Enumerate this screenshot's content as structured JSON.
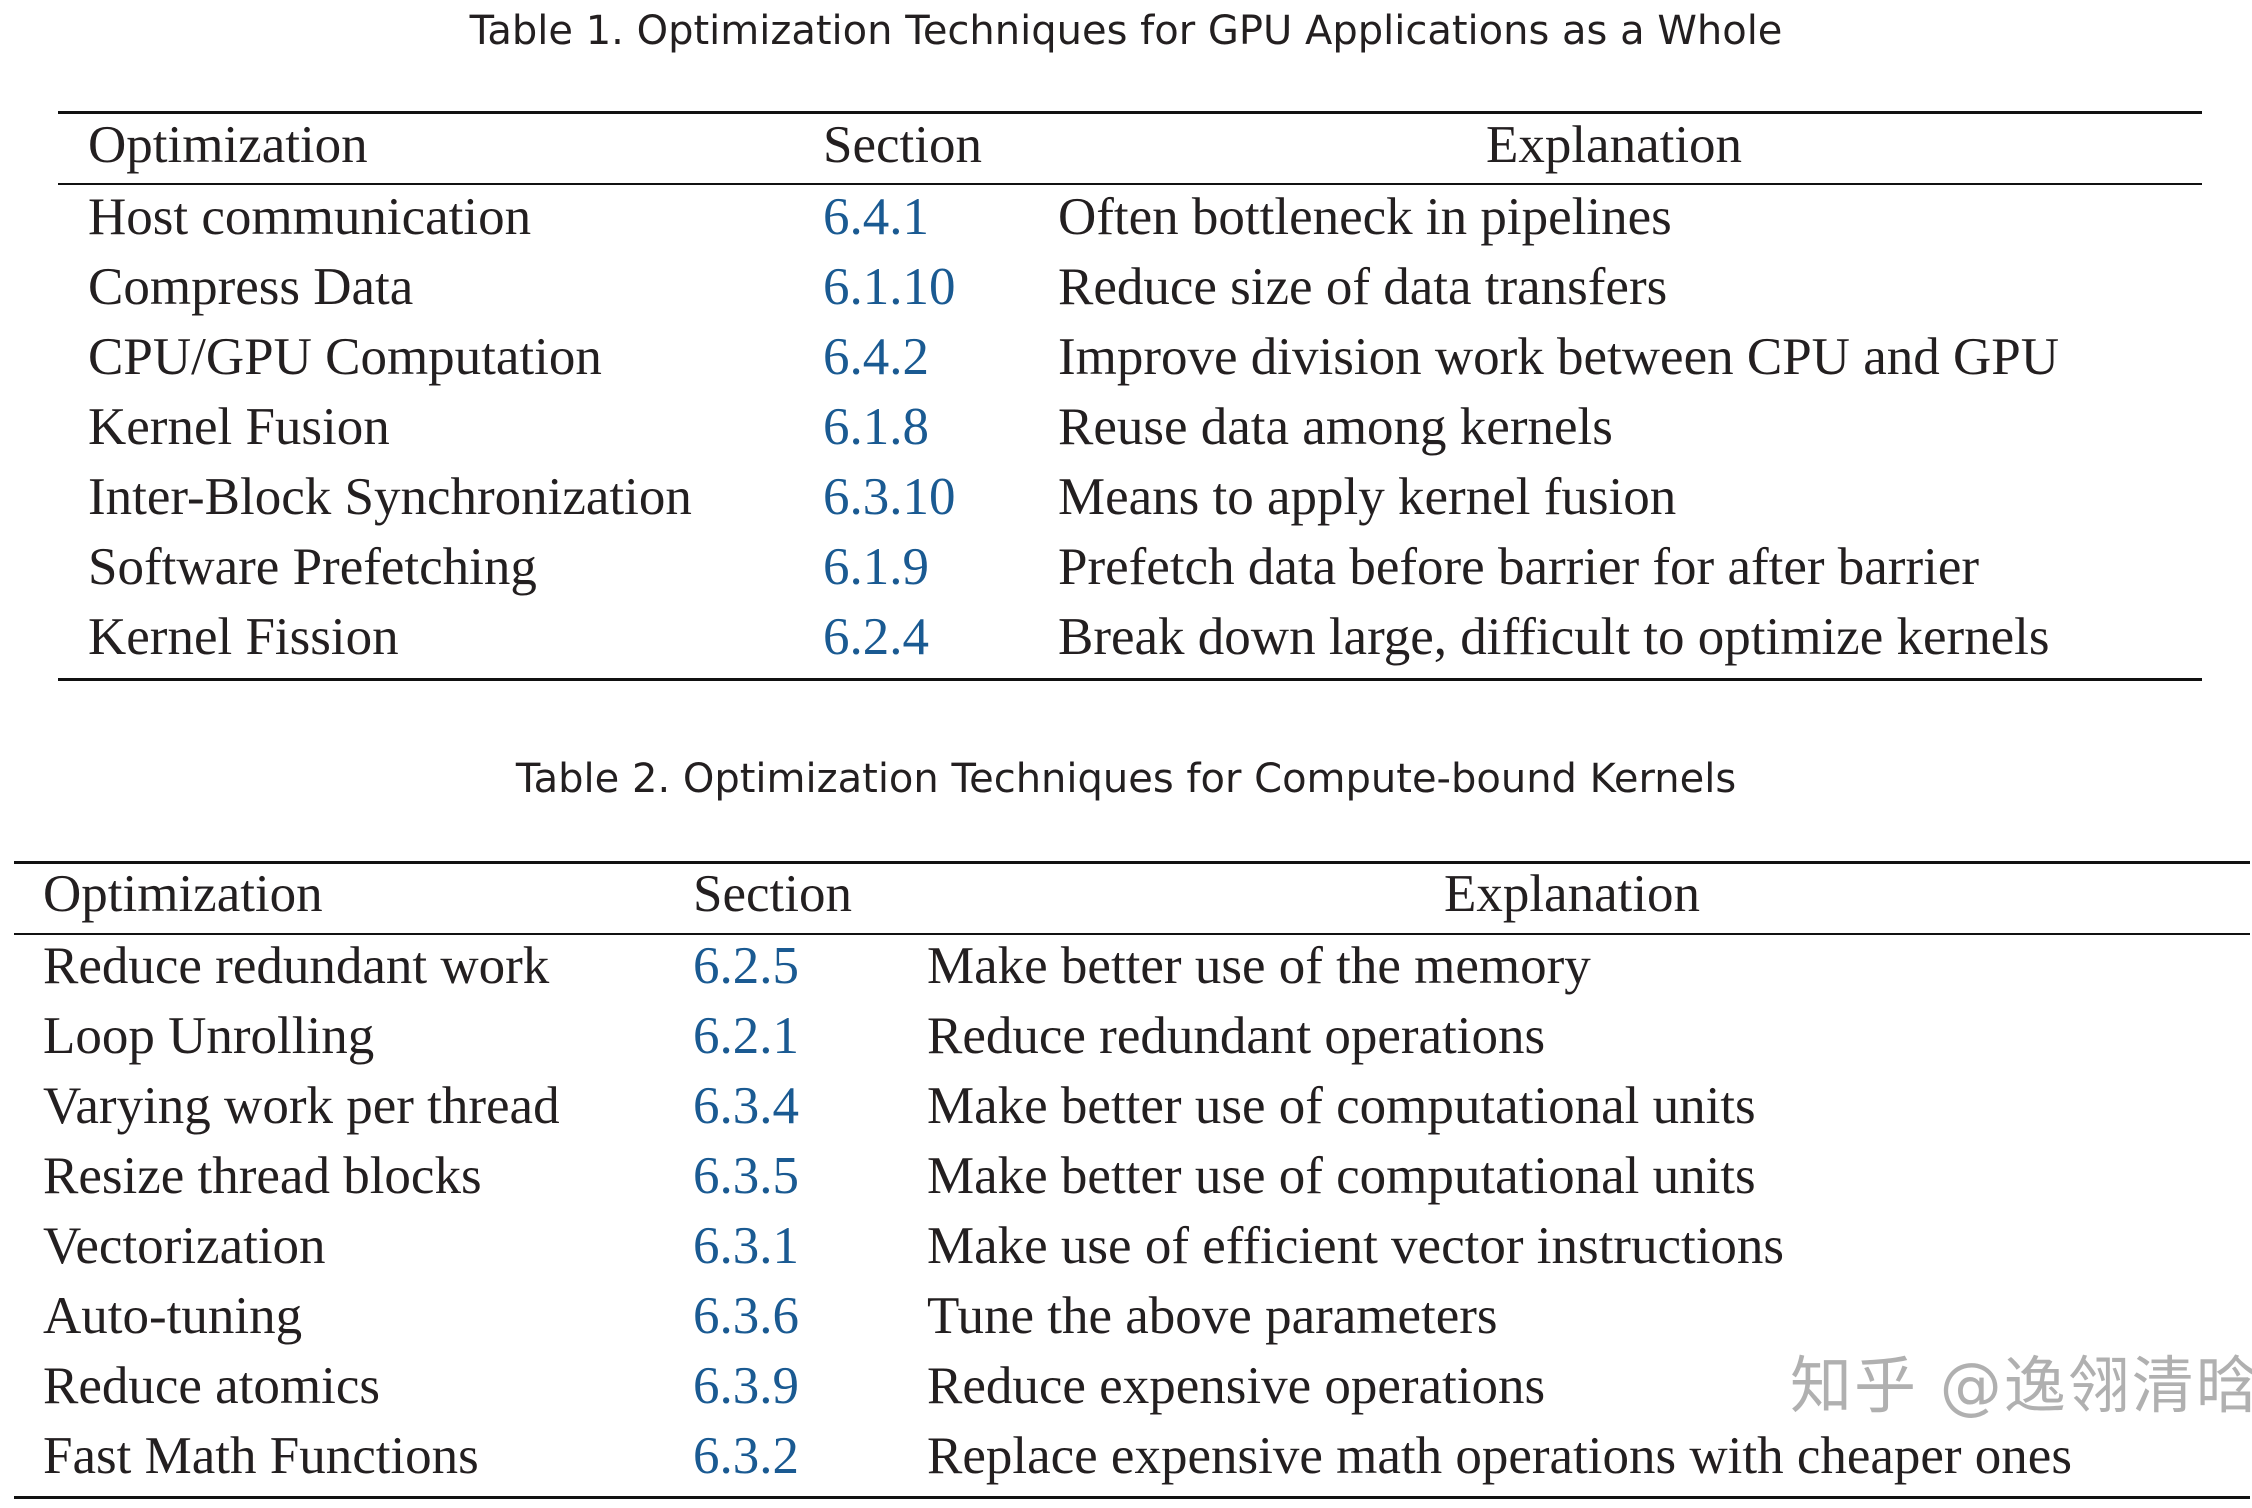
{
  "tables": [
    {
      "caption": "Table 1.  Optimization Techniques for GPU Applications as a Whole",
      "headers": {
        "optimization": "Optimization",
        "section": "Section",
        "explanation": "Explanation"
      },
      "rows": [
        {
          "optimization": "Host communication",
          "section": "6.4.1",
          "explanation": "Often bottleneck in pipelines"
        },
        {
          "optimization": "Compress Data",
          "section": "6.1.10",
          "explanation": "Reduce size of data transfers"
        },
        {
          "optimization": "CPU/GPU Computation",
          "section": "6.4.2",
          "explanation": "Improve division work between CPU and GPU"
        },
        {
          "optimization": "Kernel Fusion",
          "section": "6.1.8",
          "explanation": "Reuse data among kernels"
        },
        {
          "optimization": "Inter-Block Synchronization",
          "section": "6.3.10",
          "explanation": "Means to apply kernel fusion"
        },
        {
          "optimization": "Software Prefetching",
          "section": "6.1.9",
          "explanation": "Prefetch data before barrier for after barrier"
        },
        {
          "optimization": "Kernel Fission",
          "section": "6.2.4",
          "explanation": "Break down large, difficult to optimize kernels"
        }
      ]
    },
    {
      "caption": "Table 2.  Optimization Techniques for Compute-bound Kernels",
      "headers": {
        "optimization": "Optimization",
        "section": "Section",
        "explanation": "Explanation"
      },
      "rows": [
        {
          "optimization": "Reduce redundant work",
          "section": "6.2.5",
          "explanation": "Make better use of the memory"
        },
        {
          "optimization": "Loop Unrolling",
          "section": "6.2.1",
          "explanation": "Reduce redundant operations"
        },
        {
          "optimization": "Varying work per thread",
          "section": "6.3.4",
          "explanation": "Make better use of computational units"
        },
        {
          "optimization": "Resize thread blocks",
          "section": "6.3.5",
          "explanation": "Make better use of computational units"
        },
        {
          "optimization": "Vectorization",
          "section": "6.3.1",
          "explanation": "Make use of efficient vector instructions"
        },
        {
          "optimization": "Auto-tuning",
          "section": "6.3.6",
          "explanation": "Tune the above parameters"
        },
        {
          "optimization": "Reduce atomics",
          "section": "6.3.9",
          "explanation": "Reduce expensive operations"
        },
        {
          "optimization": "Fast Math Functions",
          "section": "6.3.2",
          "explanation": "Replace expensive math operations with cheaper ones"
        }
      ]
    }
  ],
  "watermark": "知乎 @逸翎清晗",
  "colors": {
    "section_link": "#1a5a92",
    "text": "#231f20"
  }
}
